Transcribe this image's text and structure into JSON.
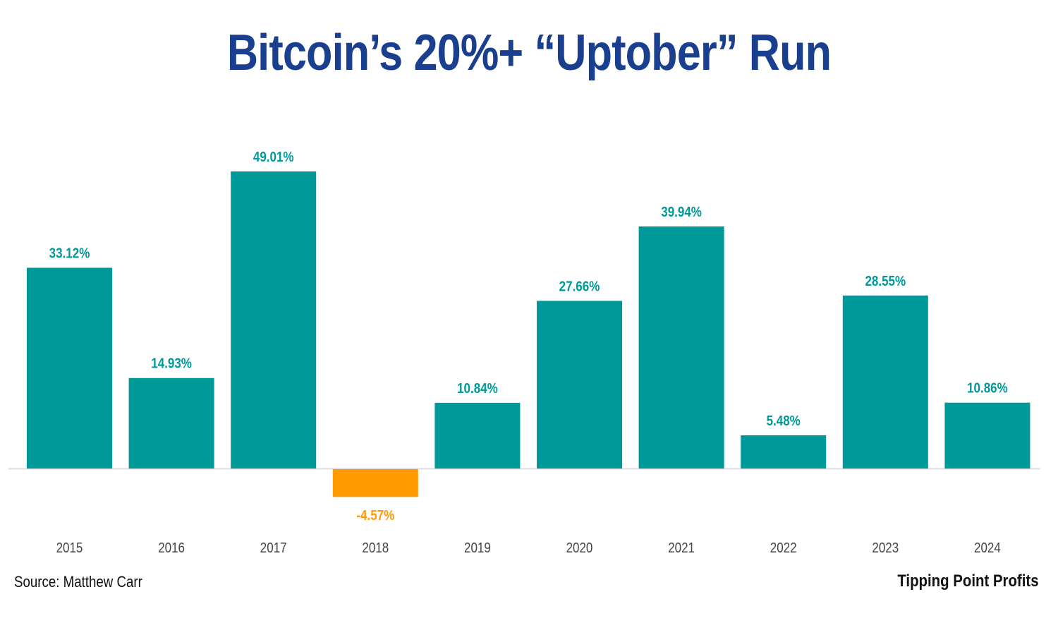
{
  "chart_data": {
    "type": "bar",
    "title": "Bitcoin’s 20%+ “Uptober” Run",
    "xlabel": "",
    "ylabel": "",
    "categories": [
      "2015",
      "2016",
      "2017",
      "2018",
      "2019",
      "2020",
      "2021",
      "2022",
      "2023",
      "2024"
    ],
    "values": [
      33.12,
      14.93,
      49.01,
      -4.57,
      10.84,
      27.66,
      39.94,
      5.48,
      28.55,
      10.86
    ],
    "data_labels": [
      "33.12%",
      "14.93%",
      "49.01%",
      "-4.57%",
      "10.84%",
      "27.66%",
      "39.94%",
      "5.48%",
      "28.55%",
      "10.86%"
    ],
    "ylim": [
      -4.57,
      49.01
    ],
    "grid": false,
    "legend": "none",
    "colors": {
      "positive": "#009999",
      "negative": "#ff9a00",
      "title": "#1b3f8f",
      "baseline": "#d4d4d4"
    }
  },
  "footer": {
    "source": "Source: Matthew Carr",
    "brand": "Tipping Point Profits"
  }
}
